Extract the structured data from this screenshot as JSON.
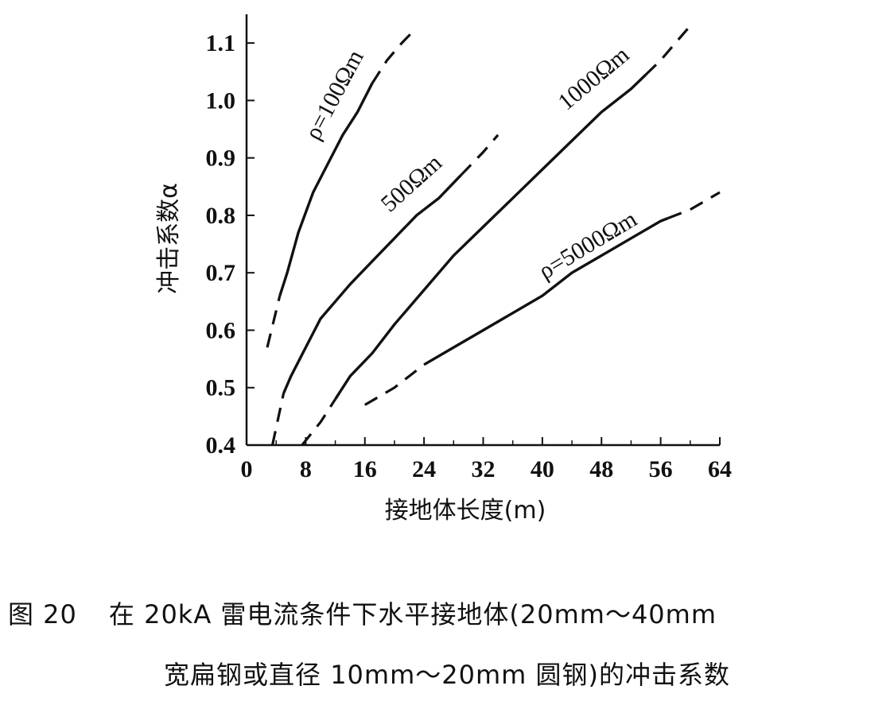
{
  "chart_data": {
    "type": "line",
    "xlabel": "接地体长度(m)",
    "ylabel": "冲击系数α",
    "xlim": [
      0,
      64
    ],
    "ylim": [
      0.4,
      1.15
    ],
    "x_ticks": [
      0,
      8,
      16,
      24,
      32,
      40,
      48,
      56,
      64
    ],
    "y_ticks": [
      0.4,
      0.5,
      0.6,
      0.7,
      0.8,
      0.9,
      1.0,
      1.1
    ],
    "x_tick_labels": [
      "0",
      "8",
      "16",
      "24",
      "32",
      "40",
      "48",
      "56",
      "64"
    ],
    "y_tick_labels": [
      "0.4",
      "0.5",
      "0.6",
      "0.7",
      "0.8",
      "0.9",
      "1.0",
      "1.1"
    ],
    "grid": false,
    "series": [
      {
        "name": "ρ=100Ωm",
        "label": "ρ=100Ωm",
        "x": [
          2.8,
          4.5,
          5.5,
          7,
          9,
          11,
          13,
          15,
          17,
          19,
          21,
          22.5
        ],
        "y": [
          0.57,
          0.66,
          0.7,
          0.77,
          0.84,
          0.89,
          0.94,
          0.98,
          1.03,
          1.07,
          1.1,
          1.12
        ],
        "solid_range": [
          4.5,
          17
        ]
      },
      {
        "name": "500Ωm",
        "label": "500Ωm",
        "x": [
          3.5,
          5,
          6,
          8,
          10,
          12,
          14,
          17,
          20,
          23,
          26,
          29,
          32,
          34
        ],
        "y": [
          0.4,
          0.49,
          0.52,
          0.57,
          0.62,
          0.65,
          0.68,
          0.72,
          0.76,
          0.8,
          0.83,
          0.87,
          0.91,
          0.94
        ],
        "solid_range": [
          5,
          29
        ]
      },
      {
        "name": "1000Ωm",
        "label": "1000Ωm",
        "x": [
          7.5,
          10,
          12,
          14,
          17,
          20,
          24,
          28,
          32,
          36,
          40,
          44,
          48,
          52,
          56,
          60
        ],
        "y": [
          0.4,
          0.44,
          0.48,
          0.52,
          0.56,
          0.61,
          0.67,
          0.73,
          0.78,
          0.83,
          0.88,
          0.93,
          0.98,
          1.02,
          1.07,
          1.13
        ],
        "solid_range": [
          12,
          54
        ]
      },
      {
        "name": "ρ=5000Ωm",
        "label": "ρ=5000Ωm",
        "x": [
          16,
          20,
          24,
          28,
          32,
          36,
          40,
          44,
          48,
          52,
          56,
          60,
          64
        ],
        "y": [
          0.47,
          0.5,
          0.54,
          0.57,
          0.6,
          0.63,
          0.66,
          0.7,
          0.73,
          0.76,
          0.79,
          0.81,
          0.84
        ],
        "solid_range": [
          24,
          57
        ]
      }
    ]
  },
  "caption": {
    "line1_number": "图 20",
    "line1_text": "在 20kA 雷电流条件下水平接地体(20mm～40mm",
    "line2_text": "宽扁钢或直径 10mm～20mm 圆钢)的冲击系数"
  }
}
